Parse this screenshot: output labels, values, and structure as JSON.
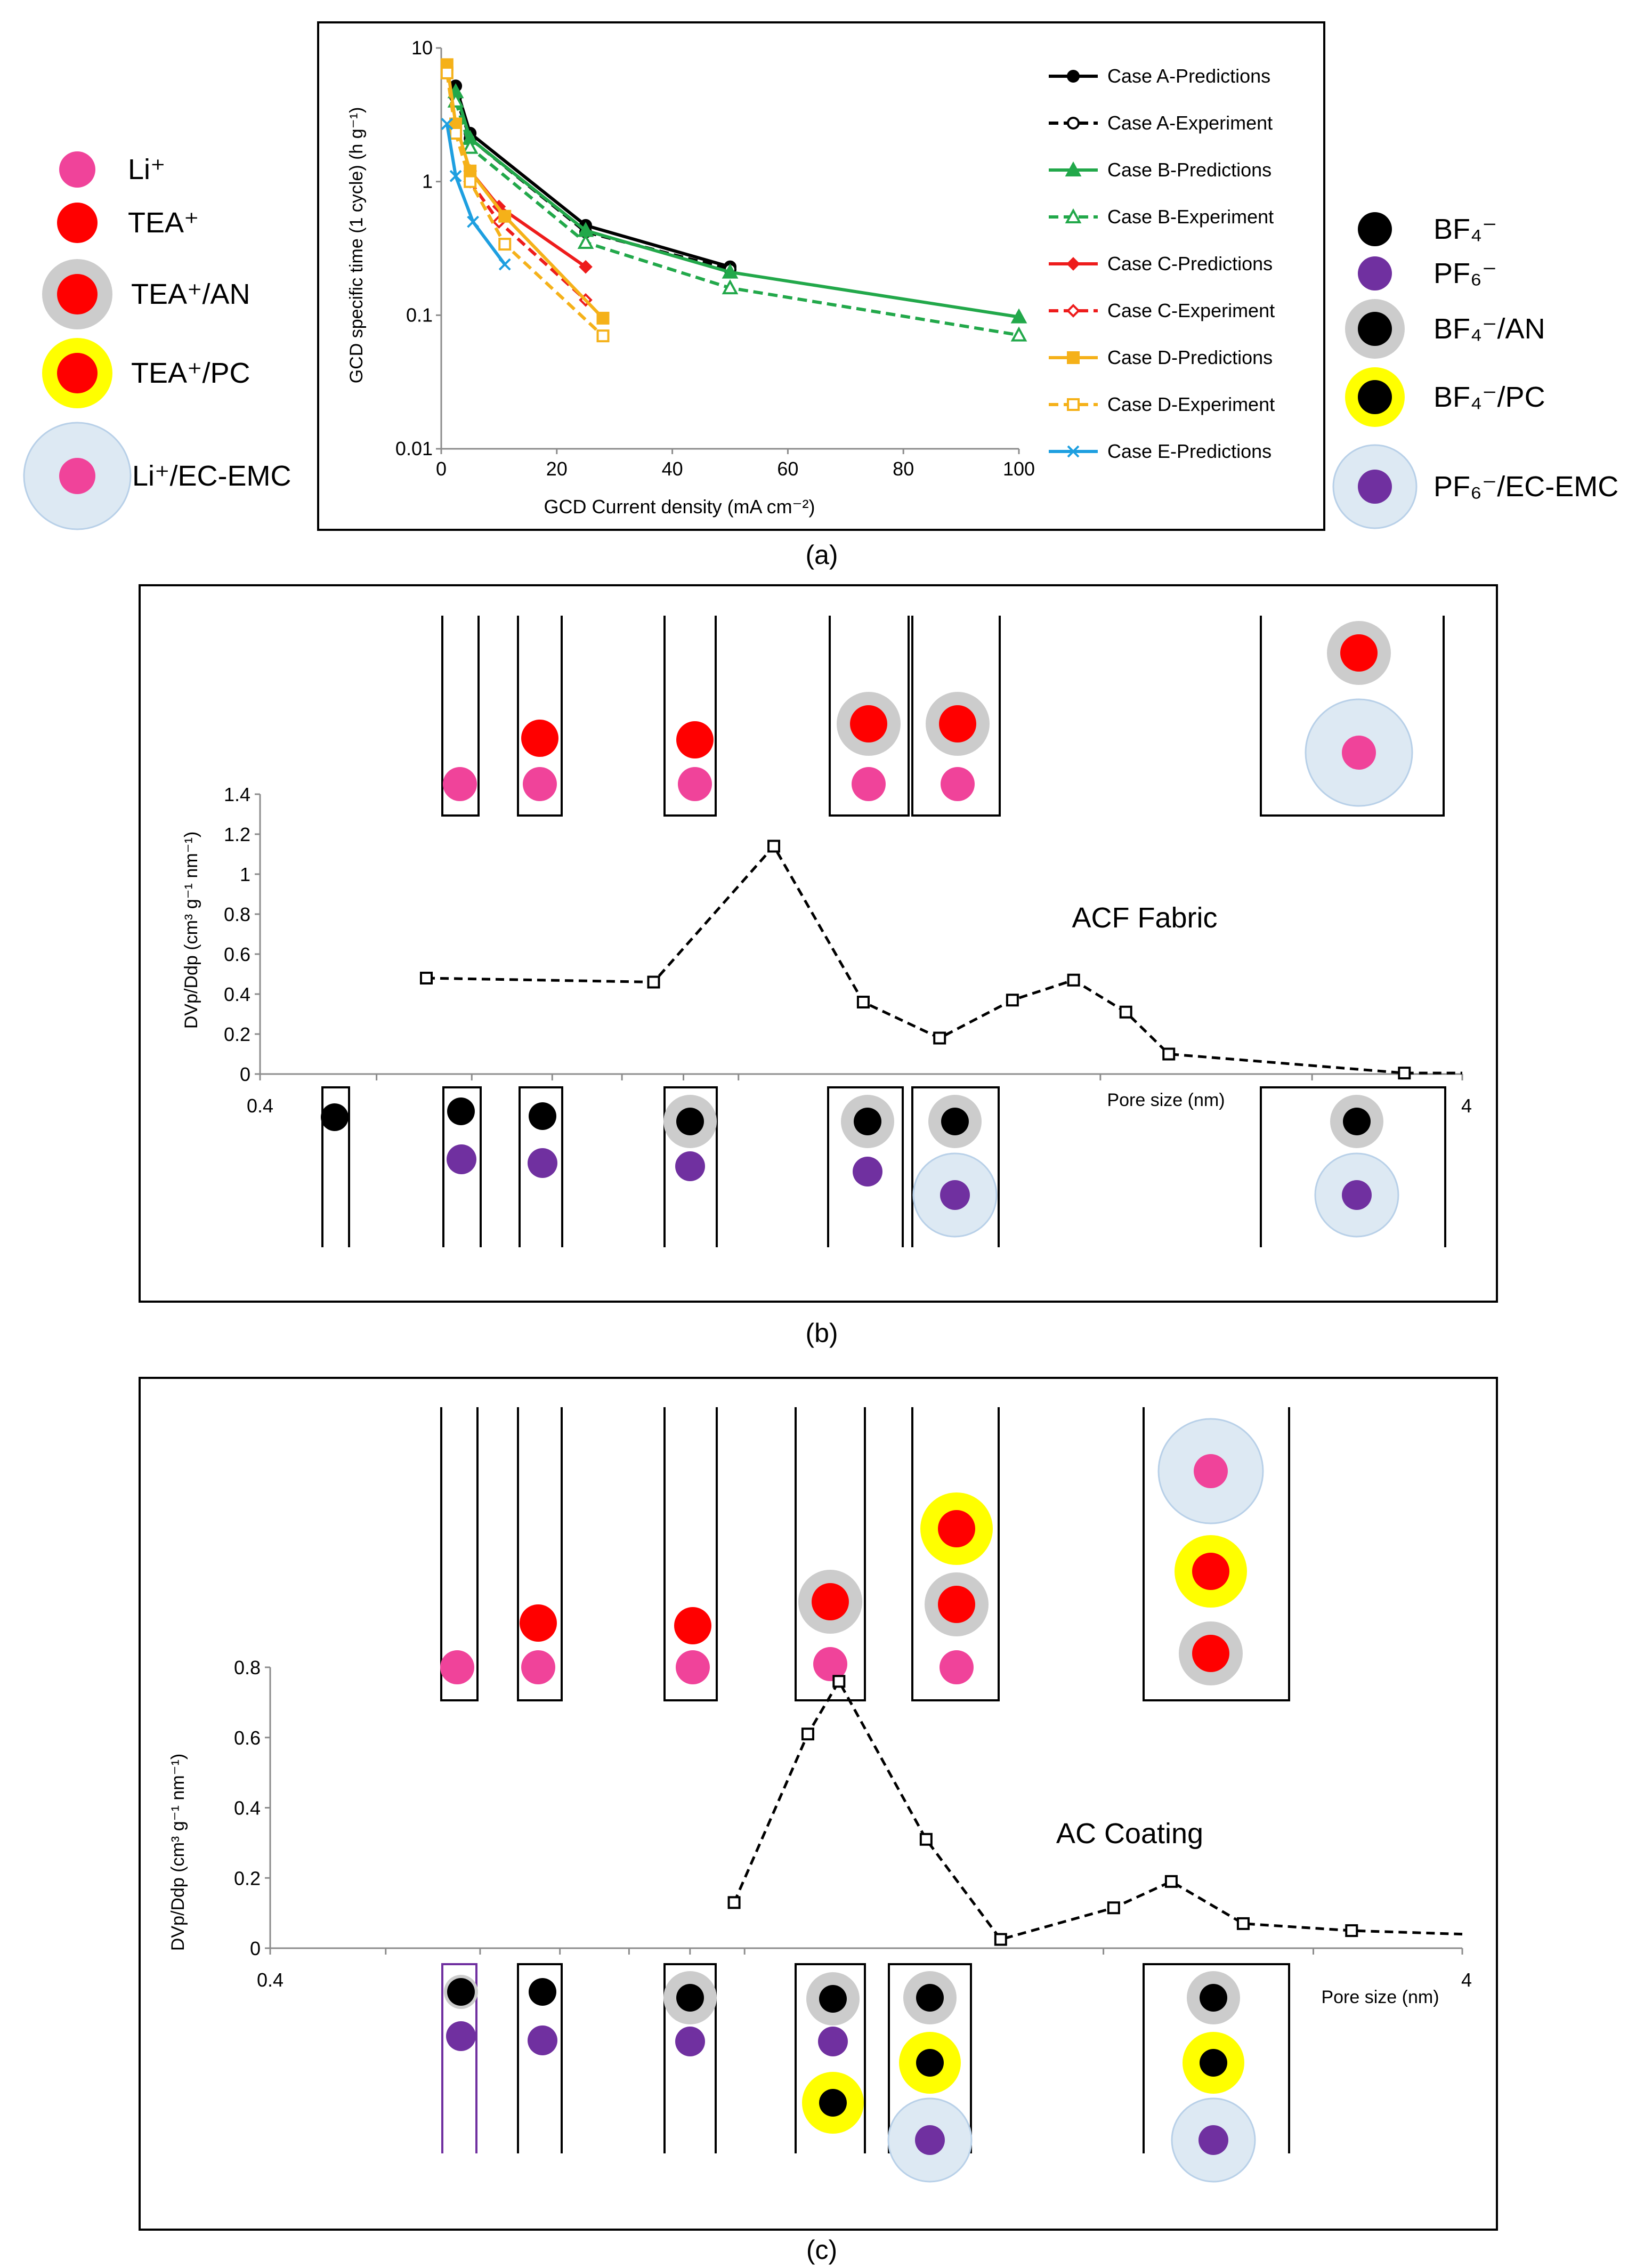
{
  "chart_data": [
    {
      "panel": "(a)",
      "type": "line",
      "xlabel": "GCD Current density (mA cm⁻²)",
      "ylabel": "GCD specific time (1 cycle) (h g⁻¹)",
      "xlim": [
        0,
        100
      ],
      "ylim": [
        0.01,
        10
      ],
      "yscale": "log",
      "xticks": [
        "0",
        "20",
        "40",
        "60",
        "80",
        "100"
      ],
      "yticks": [
        "0.01",
        "0.1",
        "1",
        "10"
      ],
      "legend_position": "right",
      "series": [
        {
          "name": "Case A-Predictions",
          "color": "#000000",
          "dash": false,
          "marker": "circle",
          "x": [
            2.5,
            5,
            25,
            50
          ],
          "y": [
            5.2,
            2.3,
            0.47,
            0.23
          ]
        },
        {
          "name": "Case A-Experiment",
          "color": "#000000",
          "dash": true,
          "marker": "open-circle",
          "x": [
            2.5,
            5,
            25,
            50
          ],
          "y": [
            4.3,
            2.1,
            0.42,
            0.22
          ]
        },
        {
          "name": "Case B-Predictions",
          "color": "#22a84a",
          "dash": false,
          "marker": "triangle",
          "x": [
            2.5,
            5,
            25,
            50,
            100
          ],
          "y": [
            4.7,
            2.1,
            0.43,
            0.21,
            0.097
          ]
        },
        {
          "name": "Case B-Experiment",
          "color": "#22a84a",
          "dash": true,
          "marker": "open-triangle",
          "x": [
            2.5,
            5,
            25,
            50,
            100
          ],
          "y": [
            4.0,
            1.8,
            0.35,
            0.16,
            0.071
          ]
        },
        {
          "name": "Case C-Predictions",
          "color": "#ee1c1c",
          "dash": false,
          "marker": "diamond",
          "x": [
            5,
            10,
            25
          ],
          "y": [
            1.2,
            0.65,
            0.23
          ]
        },
        {
          "name": "Case C-Experiment",
          "color": "#ee1c1c",
          "dash": true,
          "marker": "open-diamond",
          "x": [
            5,
            10,
            25
          ],
          "y": [
            1.0,
            0.5,
            0.13
          ]
        },
        {
          "name": "Case D-Predictions",
          "color": "#f5b119",
          "dash": false,
          "marker": "square",
          "x": [
            1,
            2.5,
            5,
            11,
            28
          ],
          "y": [
            7.5,
            2.7,
            1.2,
            0.55,
            0.095
          ]
        },
        {
          "name": "Case D-Experiment",
          "color": "#f5b119",
          "dash": true,
          "marker": "open-square",
          "x": [
            1,
            2.5,
            5,
            11,
            28
          ],
          "y": [
            6.5,
            2.3,
            1.0,
            0.34,
            0.07
          ]
        },
        {
          "name": "Case E-Predictions",
          "color": "#1e9fe0",
          "dash": false,
          "marker": "x",
          "x": [
            1,
            2.5,
            5.5,
            11
          ],
          "y": [
            2.7,
            1.1,
            0.5,
            0.24
          ]
        }
      ]
    },
    {
      "panel": "(b)",
      "type": "line",
      "title": "ACF Fabric",
      "xlabel": "Pore size (nm)",
      "ylabel": "DVp/Ddp (cm³ g⁻¹ nm⁻¹)",
      "xlim": [
        0.4,
        4
      ],
      "ylim": [
        0,
        1.4
      ],
      "xticks": [
        "0.4",
        "4"
      ],
      "yticks": [
        "0",
        "0.2",
        "0.4",
        "0.6",
        "0.8",
        "1",
        "1.2",
        "1.4"
      ],
      "series": [
        {
          "name": "ACF Fabric",
          "x": [
            0.55,
            0.85,
            1.07,
            1.27,
            1.47,
            1.69,
            1.9,
            2.1,
            2.28,
            3.58,
            4.0
          ],
          "y": [
            0.48,
            0.46,
            1.14,
            0.36,
            0.18,
            0.37,
            0.47,
            0.31,
            0.1,
            0.005,
            0.005
          ]
        }
      ]
    },
    {
      "panel": "(c)",
      "type": "line",
      "title": "AC Coating",
      "xlabel": "Pore size (nm)",
      "ylabel": "DVp/Ddp (cm³ g⁻¹ nm⁻¹)",
      "xlim": [
        0.4,
        4
      ],
      "ylim": [
        0,
        0.8
      ],
      "xticks": [
        "0.4",
        "4"
      ],
      "yticks": [
        "0",
        "0.2",
        "0.4",
        "0.6",
        "0.8"
      ],
      "series": [
        {
          "name": "AC Coating",
          "x": [
            0.98,
            1.13,
            1.2,
            1.42,
            1.64,
            2.04,
            2.28,
            2.62,
            3.23,
            4.0
          ],
          "y": [
            0.13,
            0.61,
            0.76,
            0.31,
            0.025,
            0.115,
            0.19,
            0.07,
            0.05,
            0.04
          ]
        }
      ]
    }
  ],
  "legend_left": [
    {
      "label": "Li⁺",
      "ion": "li"
    },
    {
      "label": "TEA⁺",
      "ion": "tea"
    },
    {
      "label": "TEA⁺/AN",
      "ion": "tea_an"
    },
    {
      "label": "TEA⁺/PC",
      "ion": "tea_pc"
    },
    {
      "label": "Li⁺/EC-EMC",
      "ion": "li_ec"
    }
  ],
  "legend_right": [
    {
      "label": "BF₄⁻",
      "ion": "bf4"
    },
    {
      "label": "PF₆⁻",
      "ion": "pf6"
    },
    {
      "label": "BF₄⁻/AN",
      "ion": "bf4_an"
    },
    {
      "label": "BF₄⁻/PC",
      "ion": "bf4_pc"
    },
    {
      "label": "PF₆⁻/EC-EMC",
      "ion": "pf6_ec"
    }
  ],
  "panel_labels": [
    "(a)",
    "(b)",
    "(c)"
  ],
  "colors": {
    "li": "#f0439a",
    "tea": "#ff0000",
    "an_shell": "#cccccc",
    "pc_shell": "#ffff00",
    "ec_shell": "#dde9f3",
    "bf4": "#000000",
    "pf6": "#7030a0"
  }
}
